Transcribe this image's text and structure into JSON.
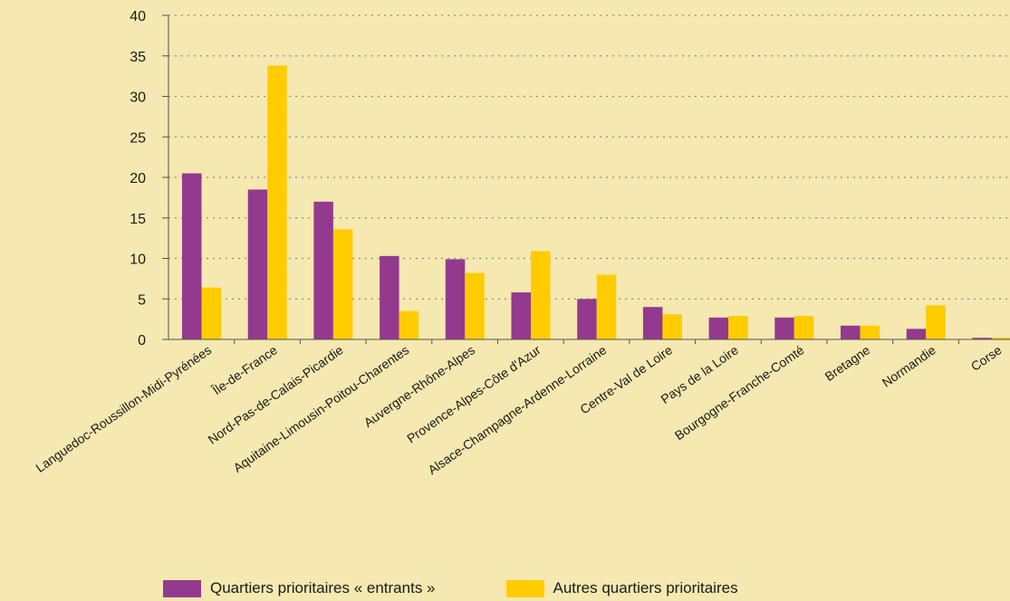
{
  "chart_data": {
    "type": "bar",
    "categories": [
      "Languedoc-Roussillon-Midi-Pyrénées",
      "Île-de-France",
      "Nord-Pas-de-Calais-Picardie",
      "Aquitaine-Limousin-Poitou-Charentes",
      "Auvergne-Rhône-Alpes",
      "Provence-Alpes-Côte d'Azur",
      "Alsace-Champagne-Ardenne-Lorraine",
      "Centre-Val de Loire",
      "Pays de la Loire",
      "Bourgogne-Franche-Comté",
      "Bretagne",
      "Normandie",
      "Corse"
    ],
    "series": [
      {
        "name": "Quartiers prioritaires « entrants »",
        "color": "#933a8e",
        "values": [
          20.5,
          18.5,
          17.0,
          10.3,
          9.9,
          5.8,
          5.0,
          4.0,
          2.7,
          2.7,
          1.7,
          1.3,
          0.2
        ]
      },
      {
        "name": "Autres quartiers prioritaires",
        "color": "#ffcc00",
        "values": [
          6.4,
          33.8,
          13.6,
          3.5,
          8.2,
          10.9,
          8.0,
          3.1,
          2.9,
          2.9,
          1.7,
          4.2,
          0.2
        ]
      }
    ],
    "yticks": [
      0,
      5,
      10,
      15,
      20,
      25,
      30,
      35,
      40
    ],
    "ylim": [
      0,
      40
    ],
    "grid": true,
    "legend_position": "bottom"
  }
}
